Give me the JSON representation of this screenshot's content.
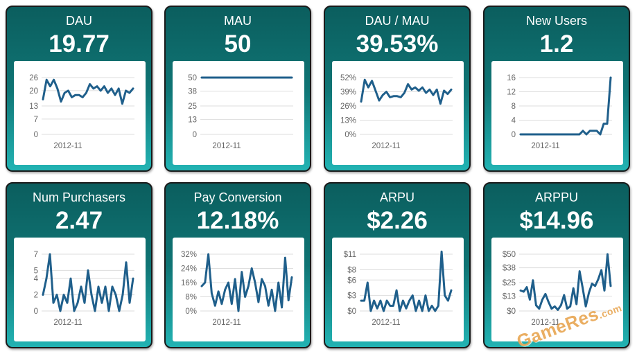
{
  "dashboard": {
    "cards": [
      {
        "title": "DAU",
        "value": "19.77"
      },
      {
        "title": "MAU",
        "value": "50"
      },
      {
        "title": "DAU / MAU",
        "value": "39.53%"
      },
      {
        "title": "New Users",
        "value": "1.2"
      },
      {
        "title": "Num Purchasers",
        "value": "2.47"
      },
      {
        "title": "Pay Conversion",
        "value": "12.18%"
      },
      {
        "title": "ARPU",
        "value": "$2.26"
      },
      {
        "title": "ARPPU",
        "value": "$14.96"
      }
    ]
  },
  "watermark": {
    "main": "GameRes",
    "suffix": ".com"
  },
  "chart_data": [
    {
      "type": "line",
      "title": "DAU",
      "y_ticks": [
        "26",
        "20",
        "13",
        "7",
        "0"
      ],
      "y_tick_values": [
        26,
        20,
        13,
        7,
        0
      ],
      "ylim": [
        0,
        26
      ],
      "x_tick_label": "2012-11",
      "grid": true,
      "values": [
        16,
        25,
        22,
        25,
        21,
        15,
        19,
        20,
        17,
        18,
        18,
        17,
        19,
        23,
        21,
        22,
        20,
        22,
        19,
        21,
        18,
        21,
        14,
        20,
        19,
        21
      ]
    },
    {
      "type": "line",
      "title": "MAU",
      "y_ticks": [
        "50",
        "38",
        "25",
        "13",
        "0"
      ],
      "y_tick_values": [
        50,
        38,
        25,
        13,
        0
      ],
      "ylim": [
        0,
        50
      ],
      "x_tick_label": "2012-11",
      "grid": true,
      "values": [
        50,
        50,
        50,
        50,
        50,
        50,
        50,
        50,
        50,
        50,
        50,
        50,
        50,
        50,
        50,
        50,
        50,
        50,
        50,
        50,
        50,
        50,
        50,
        50,
        50,
        50
      ]
    },
    {
      "type": "line",
      "title": "DAU / MAU",
      "y_ticks": [
        "52%",
        "39%",
        "26%",
        "13%",
        "0%"
      ],
      "y_tick_values": [
        52,
        39,
        26,
        13,
        0
      ],
      "ylim": [
        0,
        52
      ],
      "x_tick_label": "2012-11",
      "grid": true,
      "values": [
        30,
        50,
        43,
        49,
        40,
        31,
        36,
        39,
        34,
        35,
        35,
        34,
        38,
        46,
        41,
        43,
        40,
        43,
        38,
        41,
        36,
        41,
        28,
        40,
        37,
        41
      ]
    },
    {
      "type": "line",
      "title": "New Users",
      "y_ticks": [
        "16",
        "12",
        "8",
        "4",
        "0"
      ],
      "y_tick_values": [
        16,
        12,
        8,
        4,
        0
      ],
      "ylim": [
        0,
        16
      ],
      "x_tick_label": "2012-11",
      "grid": true,
      "values": [
        0,
        0,
        0,
        0,
        0,
        0,
        0,
        0,
        0,
        0,
        0,
        0,
        0,
        0,
        0,
        0,
        0,
        0,
        1,
        0,
        1,
        1,
        1,
        0,
        3,
        3,
        16
      ]
    },
    {
      "type": "line",
      "title": "Num Purchasers",
      "y_ticks": [
        "7",
        "5",
        "4",
        "2",
        "0"
      ],
      "y_tick_values": [
        7,
        5,
        4,
        2,
        0
      ],
      "ylim": [
        0,
        7
      ],
      "x_tick_label": "2012-11",
      "grid": true,
      "values": [
        2,
        4,
        7,
        1,
        2,
        0,
        2,
        1,
        4,
        0,
        1,
        3,
        1,
        5,
        2,
        0,
        3,
        1,
        3,
        0,
        3,
        2,
        0,
        2,
        6,
        1,
        4
      ]
    },
    {
      "type": "line",
      "title": "Pay Conversion",
      "y_ticks": [
        "32%",
        "24%",
        "16%",
        "8%",
        "0%"
      ],
      "y_tick_values": [
        32,
        24,
        16,
        8,
        0
      ],
      "ylim": [
        0,
        32
      ],
      "x_tick_label": "2012-11",
      "grid": true,
      "values": [
        14,
        16,
        32,
        10,
        3,
        11,
        4,
        12,
        16,
        4,
        18,
        0,
        22,
        8,
        14,
        24,
        16,
        5,
        18,
        14,
        3,
        12,
        0,
        16,
        2,
        30,
        6,
        19
      ]
    },
    {
      "type": "line",
      "title": "ARPU",
      "y_ticks": [
        "$11",
        "$8",
        "$6",
        "$3",
        "$0"
      ],
      "y_tick_values": [
        11,
        8,
        6,
        3,
        0
      ],
      "ylim": [
        0,
        11
      ],
      "x_tick_label": "2012-11",
      "grid": true,
      "values": [
        2,
        2,
        5.5,
        0,
        2,
        0.5,
        2,
        0,
        2,
        1,
        1,
        4,
        0,
        2,
        0.5,
        2,
        3,
        0,
        2,
        0,
        3,
        0,
        1,
        0,
        1,
        11.5,
        3,
        2,
        4
      ]
    },
    {
      "type": "line",
      "title": "ARPPU",
      "y_ticks": [
        "$50",
        "$38",
        "$25",
        "$13",
        "$0"
      ],
      "y_tick_values": [
        50,
        38,
        25,
        13,
        0
      ],
      "ylim": [
        0,
        50
      ],
      "x_tick_label": "2012-11",
      "grid": true,
      "values": [
        18,
        17,
        21,
        10,
        27,
        5,
        2,
        10,
        15,
        8,
        2,
        4,
        1,
        5,
        14,
        2,
        4,
        20,
        6,
        35,
        20,
        4,
        16,
        24,
        22,
        28,
        36,
        18,
        50,
        22
      ]
    }
  ]
}
